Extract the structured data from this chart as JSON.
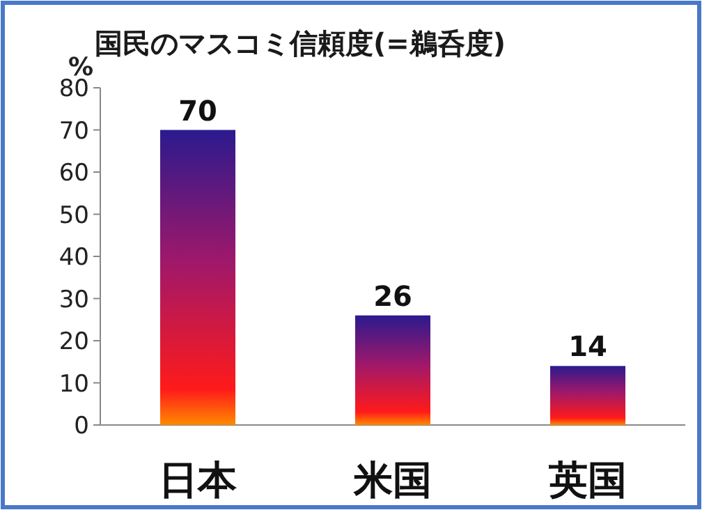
{
  "chart_data": {
    "type": "bar",
    "title": "国民のマスコミ信頼度(=鵜呑度)",
    "ylabel": "%",
    "categories": [
      "日本",
      "米国",
      "英国"
    ],
    "values": [
      70,
      26,
      14
    ],
    "color": "#2b1a8e",
    "ylim": [
      0,
      80
    ],
    "yticks": [
      0,
      10,
      20,
      30,
      40,
      50,
      60,
      70,
      80
    ],
    "data_labels": true,
    "grid": false
  }
}
